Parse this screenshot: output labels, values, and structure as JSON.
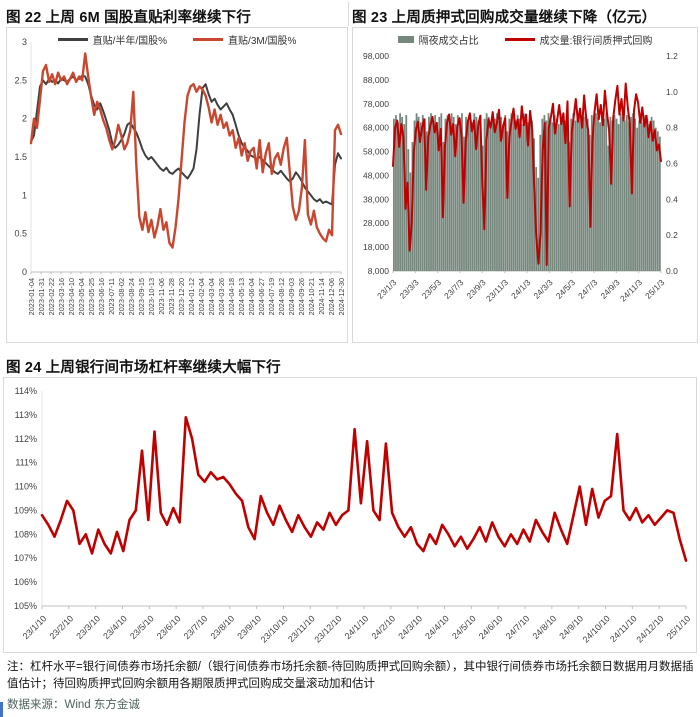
{
  "figure22": {
    "title": "图 22  上周 6M 国股直贴利率继续下行"
  },
  "figure23": {
    "title": "图 23  上周质押式回购成交量继续下降（亿元）"
  },
  "figure24": {
    "title": "图 24  上周银行间市场杠杆率继续大幅下行"
  },
  "notes": {
    "text": "注：杠杆水平=银行间债券市场托余额/（银行间债券市场托余额-待回购质押式回购余额），其中银行间债券市场托余额日数据用月数据插值估计；待回购质押式回购余额用各期限质押式回购成交量滚动加和估计",
    "source": "数据来源：Wind 东方金诚"
  },
  "colors": {
    "fig22_dark": "#3f3f3f",
    "fig22_red": "#c9472f",
    "fig23_bar": "#76877d",
    "fig23_red": "#c00000",
    "fig24_red": "#c00000",
    "border": "#d9d9d9",
    "axis": "#bfbfbf",
    "tick_text": "#404040"
  },
  "chart_data": [
    {
      "id": "fig22",
      "type": "line",
      "title": "图 22  上周 6M 国股直贴利率继续下行",
      "ylim": [
        0,
        3
      ],
      "ytick_values": [
        3,
        2.5,
        2,
        1.5,
        1,
        0.5,
        0
      ],
      "ytick_labels": [
        "3",
        "2.5",
        "2",
        "1.5",
        "1",
        "0.5",
        "0"
      ],
      "xtick_labels": [
        "2023-01-04",
        "2023-01-31",
        "2023-02-22",
        "2023-03-16",
        "2023-04-10",
        "2023-05-04",
        "2023-05-25",
        "2023-06-16",
        "2023-07-11",
        "2023-08-02",
        "2023-08-24",
        "2023-09-15",
        "2023-10-13",
        "2023-11-06",
        "2023-11-28",
        "2023-12-20",
        "2024-01-12",
        "2024-02-04",
        "2024-03-04",
        "2024-03-26",
        "2024-04-18",
        "2024-05-13",
        "2024-06-04",
        "2024-06-27",
        "2024-07-19",
        "2024-08-12",
        "2024-09-03",
        "2024-09-26",
        "2024-10-21",
        "2024-11-14",
        "2024-12-06",
        "2024-12-30"
      ],
      "grid": false,
      "legend_position": "top",
      "series": [
        {
          "name": "直贴/半年/国股%",
          "color": "#3f3f3f",
          "width": 2,
          "values": [
            1.7,
            1.78,
            2.1,
            2.42,
            2.5,
            2.45,
            2.52,
            2.48,
            2.5,
            2.46,
            2.52,
            2.5,
            2.48,
            2.52,
            2.55,
            2.5,
            2.52,
            2.56,
            2.55,
            2.45,
            2.3,
            2.18,
            2.12,
            2.2,
            2.1,
            1.98,
            1.85,
            1.68,
            1.62,
            1.66,
            1.72,
            1.8,
            1.92,
            1.95,
            1.88,
            1.82,
            1.72,
            1.6,
            1.52,
            1.47,
            1.5,
            1.45,
            1.4,
            1.35,
            1.32,
            1.36,
            1.3,
            1.28,
            1.32,
            1.35,
            1.3,
            1.26,
            1.22,
            1.28,
            1.35,
            1.6,
            2.05,
            2.4,
            2.45,
            2.32,
            2.22,
            2.26,
            2.18,
            2.12,
            2.16,
            2.2,
            2.12,
            2.05,
            1.92,
            1.78,
            1.68,
            1.62,
            1.58,
            1.52,
            1.5,
            1.47,
            1.5,
            1.46,
            1.42,
            1.38,
            1.34,
            1.3,
            1.28,
            1.32,
            1.27,
            1.22,
            1.18,
            1.22,
            1.3,
            1.25,
            1.18,
            1.1,
            1.05,
            1.0,
            0.95,
            0.92,
            0.95,
            0.9,
            0.92,
            0.9,
            0.88,
            1.4,
            1.55,
            1.48
          ]
        },
        {
          "name": "直贴/3M/国股%",
          "color": "#c9472f",
          "width": 2.4,
          "values": [
            1.68,
            2.0,
            1.88,
            2.25,
            2.62,
            2.7,
            2.48,
            2.58,
            2.45,
            2.6,
            2.5,
            2.55,
            2.45,
            2.52,
            2.6,
            2.48,
            2.55,
            2.5,
            2.85,
            2.55,
            2.28,
            2.05,
            2.22,
            2.12,
            1.98,
            1.88,
            1.72,
            1.6,
            1.72,
            1.92,
            1.78,
            1.6,
            1.68,
            1.85,
            2.35,
            1.4,
            0.72,
            0.55,
            0.78,
            0.52,
            0.68,
            0.45,
            0.6,
            0.82,
            0.55,
            0.65,
            0.38,
            0.32,
            0.58,
            0.95,
            1.45,
            1.95,
            2.3,
            2.42,
            2.45,
            2.35,
            2.42,
            2.38,
            2.3,
            2.15,
            1.95,
            2.12,
            1.92,
            2.05,
            1.88,
            1.95,
            1.78,
            1.85,
            1.62,
            1.75,
            1.52,
            1.68,
            1.45,
            1.58,
            1.62,
            1.35,
            1.72,
            1.3,
            1.55,
            1.68,
            1.28,
            1.48,
            1.55,
            1.4,
            1.62,
            1.75,
            1.3,
            0.85,
            0.68,
            0.8,
            1.1,
            1.72,
            0.75,
            0.62,
            0.8,
            0.58,
            0.5,
            0.44,
            0.4,
            0.55,
            0.48,
            1.85,
            1.92,
            1.8
          ]
        }
      ]
    },
    {
      "id": "fig23",
      "type": "combo",
      "title": "图 23  上周质押式回购成交量继续下降（亿元）",
      "left_ylim": [
        8000,
        98000
      ],
      "left_ytick_values": [
        98000,
        88000,
        78000,
        68000,
        58000,
        48000,
        38000,
        28000,
        18000,
        8000
      ],
      "left_ytick_labels": [
        "98,000",
        "88,000",
        "78,000",
        "68,000",
        "58,000",
        "48,000",
        "38,000",
        "28,000",
        "18,000",
        "8,000"
      ],
      "right_ylim": [
        0,
        1.2
      ],
      "right_ytick_values": [
        1.2,
        1.0,
        0.8,
        0.6,
        0.4,
        0.2,
        0.0
      ],
      "right_ytick_labels": [
        "1.2",
        "1.0",
        "0.8",
        "0.6",
        "0.4",
        "0.2",
        "0.0"
      ],
      "xtick_labels": [
        "23/1/3",
        "23/3/3",
        "23/5/3",
        "23/7/3",
        "23/9/3",
        "23/11/3",
        "24/1/3",
        "24/3/3",
        "24/5/3",
        "24/7/3",
        "24/9/3",
        "24/11/3",
        "25/1/3"
      ],
      "grid": false,
      "legend_position": "top",
      "series": [
        {
          "name": "隔夜成交占比",
          "type": "bar",
          "axis": "right",
          "color": "#76877d",
          "values": [
            0.85,
            0.87,
            0.83,
            0.88,
            0.86,
            0.82,
            0.87,
            0.68,
            0.55,
            0.72,
            0.84,
            0.88,
            0.86,
            0.83,
            0.87,
            0.85,
            0.78,
            0.86,
            0.88,
            0.84,
            0.87,
            0.83,
            0.86,
            0.88,
            0.72,
            0.85,
            0.87,
            0.84,
            0.88,
            0.86,
            0.82,
            0.87,
            0.85,
            0.88,
            0.75,
            0.86,
            0.84,
            0.87,
            0.83,
            0.88,
            0.86,
            0.84,
            0.87,
            0.7,
            0.85,
            0.88,
            0.86,
            0.83,
            0.87,
            0.85,
            0.88,
            0.84,
            0.86,
            0.82,
            0.87,
            0.78,
            0.85,
            0.88,
            0.86,
            0.84,
            0.87,
            0.85,
            0.82,
            0.88,
            0.86,
            0.83,
            0.87,
            0.84,
            0.74,
            0.58,
            0.52,
            0.76,
            0.85,
            0.87,
            0.84,
            0.88,
            0.86,
            0.83,
            0.87,
            0.85,
            0.82,
            0.88,
            0.86,
            0.84,
            0.87,
            0.72,
            0.85,
            0.88,
            0.84,
            0.86,
            0.87,
            0.83,
            0.86,
            0.88,
            0.85,
            0.76,
            0.87,
            0.84,
            0.88,
            0.86,
            0.83,
            0.87,
            0.85,
            0.88,
            0.7,
            0.86,
            0.84,
            0.87,
            0.85,
            0.82,
            0.88,
            0.86,
            0.84,
            0.87,
            0.83,
            0.86,
            0.88,
            0.85,
            0.8,
            0.84,
            0.86,
            0.83,
            0.87,
            0.85,
            0.82,
            0.86,
            0.84,
            0.8,
            0.78,
            0.75
          ]
        },
        {
          "name": "成交量:银行间质押式回购",
          "type": "line",
          "axis": "left",
          "color": "#c00000",
          "width": 2,
          "values": [
            52000,
            68000,
            71000,
            60000,
            69500,
            64000,
            34000,
            45000,
            16500,
            28000,
            58000,
            67000,
            70500,
            62000,
            68000,
            71500,
            42000,
            64000,
            69000,
            72500,
            66000,
            70000,
            58500,
            67500,
            30500,
            60000,
            70000,
            73500,
            65000,
            69500,
            56000,
            68500,
            72000,
            64500,
            36500,
            62000,
            70500,
            74000,
            66500,
            71000,
            59000,
            69000,
            73000,
            45500,
            25500,
            63000,
            71500,
            68000,
            74500,
            66000,
            70000,
            75500,
            62500,
            68500,
            72000,
            38500,
            64000,
            70500,
            76000,
            67500,
            71500,
            64000,
            77000,
            69000,
            73500,
            60500,
            75000,
            67000,
            42000,
            22000,
            11000,
            24000,
            58000,
            70000,
            10500,
            68000,
            72500,
            78000,
            65500,
            71000,
            77500,
            69500,
            74000,
            61500,
            79000,
            35000,
            66000,
            72500,
            80000,
            70500,
            76000,
            68000,
            81500,
            72000,
            66500,
            26500,
            62000,
            74500,
            82000,
            71500,
            77500,
            69000,
            83500,
            74000,
            67000,
            44500,
            72000,
            79500,
            85500,
            73500,
            80000,
            71000,
            86500,
            76500,
            69500,
            40500,
            75000,
            82000,
            78500,
            70000,
            76500,
            68500,
            73000,
            64000,
            70500,
            62500,
            67000,
            58500,
            61000,
            54000
          ]
        }
      ]
    },
    {
      "id": "fig24",
      "type": "line",
      "title": "图 24  上周银行间市场杠杆率继续大幅下行",
      "ylim": [
        105,
        114
      ],
      "ytick_values": [
        114,
        113,
        112,
        111,
        110,
        109,
        108,
        107,
        106,
        105
      ],
      "ytick_labels": [
        "114%",
        "113%",
        "112%",
        "111%",
        "110%",
        "109%",
        "108%",
        "107%",
        "106%",
        "105%"
      ],
      "xtick_labels": [
        "23/1/10",
        "23/2/10",
        "23/3/10",
        "23/4/10",
        "23/5/10",
        "23/6/10",
        "23/7/10",
        "23/8/10",
        "23/9/10",
        "23/10/10",
        "23/11/10",
        "23/12/10",
        "24/1/10",
        "24/2/10",
        "24/3/10",
        "24/4/10",
        "24/5/10",
        "24/6/10",
        "24/7/10",
        "24/8/10",
        "24/9/10",
        "24/10/10",
        "24/11/10",
        "24/12/10",
        "25/1/10"
      ],
      "grid": false,
      "legend_position": "none",
      "series": [
        {
          "name": "银行间市场杠杆率",
          "color": "#c00000",
          "width": 2.6,
          "values": [
            108.8,
            108.4,
            107.9,
            108.6,
            109.4,
            109.0,
            107.6,
            108.0,
            107.2,
            108.2,
            107.6,
            107.2,
            108.1,
            107.3,
            108.6,
            109.0,
            111.5,
            108.6,
            112.3,
            108.9,
            108.4,
            109.1,
            108.5,
            112.9,
            112.0,
            110.5,
            110.2,
            110.6,
            110.3,
            110.4,
            110.1,
            109.7,
            109.4,
            108.3,
            107.8,
            109.6,
            108.9,
            108.4,
            109.2,
            108.6,
            108.1,
            108.8,
            108.3,
            107.9,
            108.5,
            108.2,
            108.9,
            108.4,
            108.8,
            109.0,
            112.4,
            109.3,
            111.9,
            109.0,
            108.6,
            111.8,
            108.9,
            108.3,
            107.9,
            108.3,
            107.6,
            107.3,
            108.0,
            107.6,
            108.4,
            108.0,
            107.5,
            107.9,
            107.4,
            107.8,
            108.3,
            107.7,
            108.5,
            107.9,
            107.5,
            108.0,
            107.6,
            108.2,
            107.7,
            108.6,
            108.1,
            107.7,
            108.9,
            108.2,
            107.6,
            108.8,
            110.0,
            108.4,
            109.9,
            108.7,
            109.4,
            109.6,
            112.2,
            109.0,
            108.6,
            109.1,
            108.5,
            108.8,
            108.4,
            108.7,
            109.0,
            108.9,
            107.8,
            106.9
          ]
        }
      ]
    }
  ]
}
